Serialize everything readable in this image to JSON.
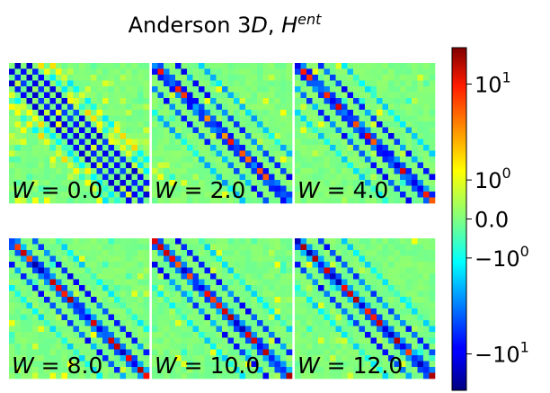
{
  "chart_data": {
    "type": "heatmap",
    "title_main": "Anderson 3",
    "title_italic_d": "D",
    "title_comma": ", ",
    "title_h": "H",
    "title_sup": "ent",
    "grid_size": 24,
    "colormap": "jet",
    "colorbar": {
      "scale": "symlog",
      "range": [
        -20,
        20
      ],
      "ticks": [
        {
          "value": 10,
          "base": "10",
          "exp": "1",
          "sign": ""
        },
        {
          "value": 1,
          "base": "10",
          "exp": "0",
          "sign": ""
        },
        {
          "value": 0,
          "text": "0.0"
        },
        {
          "value": -1,
          "base": "10",
          "exp": "0",
          "sign": "−"
        },
        {
          "value": -10,
          "base": "10",
          "exp": "1",
          "sign": "−"
        }
      ]
    },
    "panels": [
      {
        "label_var": "W",
        "label_value": "0.0",
        "disorder": 0.0
      },
      {
        "label_var": "W",
        "label_value": "2.0",
        "disorder": 2.0
      },
      {
        "label_var": "W",
        "label_value": "4.0",
        "disorder": 4.0
      },
      {
        "label_var": "W",
        "label_value": "8.0",
        "disorder": 8.0
      },
      {
        "label_var": "W",
        "label_value": "10.0",
        "disorder": 10.0
      },
      {
        "label_var": "W",
        "label_value": "12.0",
        "disorder": 12.0
      }
    ]
  }
}
